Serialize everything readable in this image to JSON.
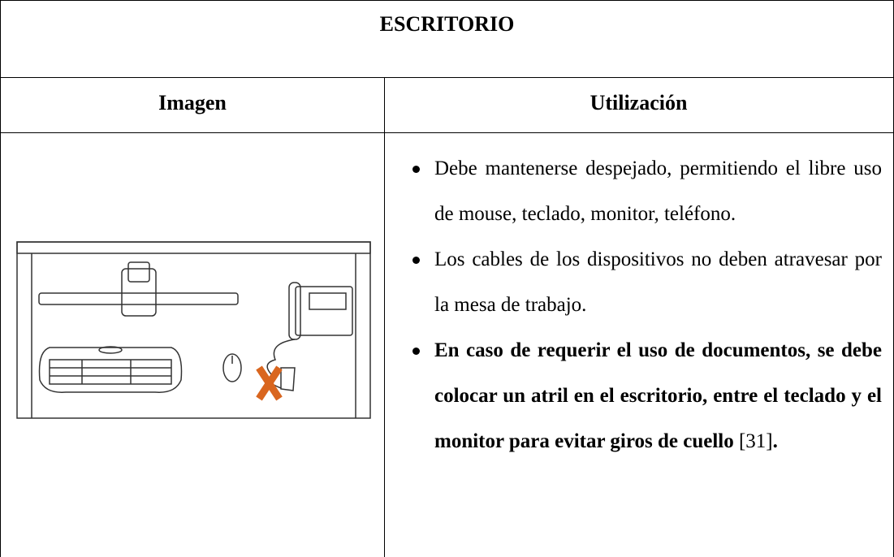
{
  "table": {
    "title": "ESCRITORIO",
    "headers": [
      "Imagen",
      "Utilización"
    ],
    "bullets": [
      "Debe mantenerse despejado, permitiendo el libre uso de mouse, teclado, monitor, teléfono.",
      "Los cables de los dispositivos no deben atravesar por la mesa de trabajo.",
      {
        "text": "En caso de requerir el uso de documentos, se debe colocar un atril en el escritorio, entre el teclado y el monitor para evitar giros de cuello",
        "reference": "[31]",
        "end": "."
      }
    ]
  }
}
